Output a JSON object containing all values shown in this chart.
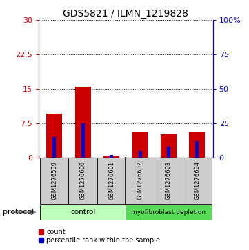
{
  "title": "GDS5821 / ILMN_1219828",
  "samples": [
    "GSM1276599",
    "GSM1276600",
    "GSM1276601",
    "GSM1276602",
    "GSM1276603",
    "GSM1276604"
  ],
  "count_values": [
    9.5,
    15.5,
    0.3,
    5.5,
    5.0,
    5.5
  ],
  "percentile_values": [
    15,
    25,
    2,
    5,
    8,
    12
  ],
  "left_yticks": [
    0,
    7.5,
    15,
    22.5,
    30
  ],
  "right_yticks": [
    0,
    25,
    50,
    75,
    100
  ],
  "right_ylabels": [
    "0",
    "25",
    "50",
    "75",
    "100%"
  ],
  "ylim": [
    0,
    30
  ],
  "right_ylim": [
    0,
    100
  ],
  "red_color": "#cc0000",
  "blue_color": "#0000cc",
  "control_color": "#bbffbb",
  "depletion_color": "#55dd55",
  "label_bg_color": "#cccccc",
  "legend_count": "count",
  "legend_percentile": "percentile rank within the sample",
  "protocol_label": "protocol"
}
